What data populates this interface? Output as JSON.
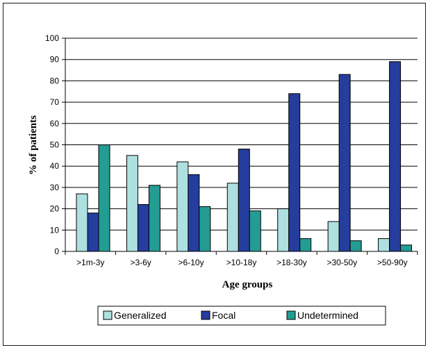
{
  "chart_data": {
    "type": "bar",
    "title": "",
    "xlabel": "Age groups",
    "ylabel": "% of patients",
    "ylim": [
      0,
      100
    ],
    "yticks": [
      "0",
      "10",
      "20",
      "30",
      "40",
      "50",
      "60",
      "70",
      "80",
      "90",
      "100"
    ],
    "grid": true,
    "legend_position": "bottom",
    "categories": [
      ">1m-3y",
      ">3-6y",
      ">6-10y",
      ">10-18y",
      ">18-30y",
      ">30-50y",
      ">50-90y"
    ],
    "series": [
      {
        "name": "Generalized",
        "color": "#aee0e0",
        "values": [
          27,
          45,
          42,
          32,
          20,
          14,
          6
        ]
      },
      {
        "name": "Focal",
        "color": "#253d9c",
        "values": [
          18,
          22,
          36,
          48,
          74,
          83,
          89
        ]
      },
      {
        "name": "Undetermined",
        "color": "#239c94",
        "values": [
          50,
          31,
          21,
          19,
          6,
          5,
          3
        ]
      }
    ]
  }
}
